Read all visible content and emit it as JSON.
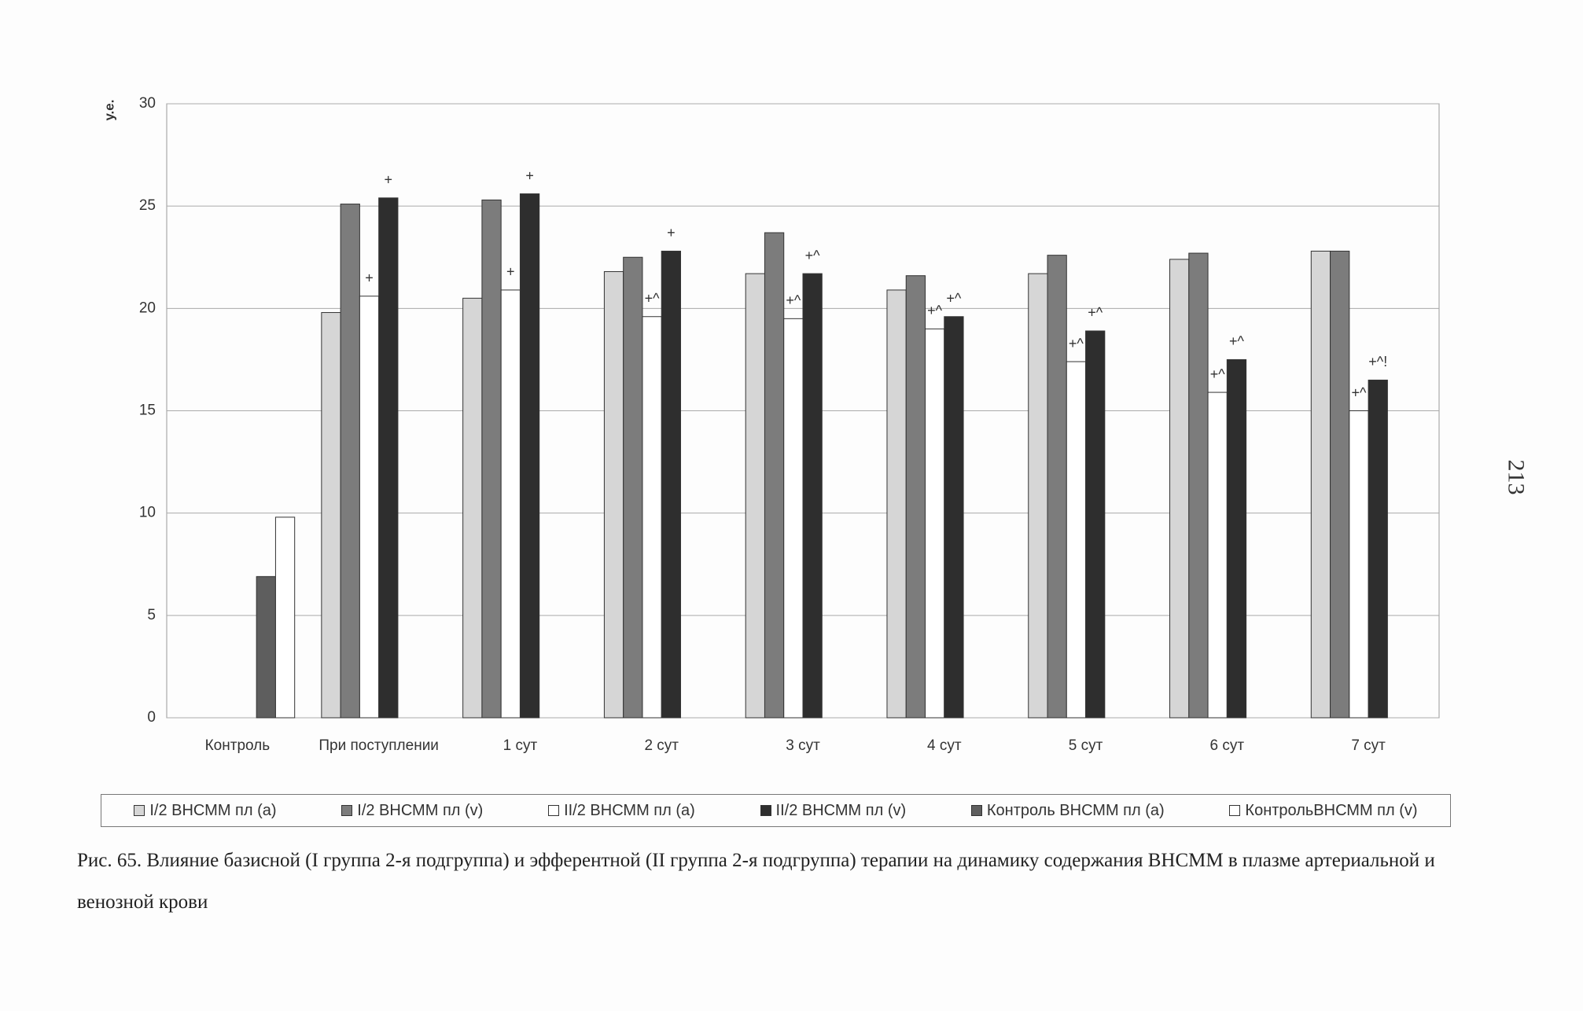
{
  "chart_data": {
    "type": "bar",
    "y_label": "у.е.",
    "categories": [
      "Контроль",
      "При поступлении",
      "1 сут",
      "2 сут",
      "3 сут",
      "4 сут",
      "5 сут",
      "6 сут",
      "7 сут"
    ],
    "series": [
      {
        "name": "I/2 ВНСММ пл (а)",
        "color": "#d6d6d6",
        "values": [
          null,
          19.8,
          20.5,
          21.8,
          21.7,
          20.9,
          21.7,
          22.4,
          22.8
        ]
      },
      {
        "name": "I/2 ВНСММ пл (v)",
        "color": "#7c7c7c",
        "values": [
          null,
          25.1,
          25.3,
          22.5,
          23.7,
          21.6,
          22.6,
          22.7,
          22.8
        ]
      },
      {
        "name": "II/2 ВНСММ пл (a)",
        "color": "#ffffff",
        "values": [
          null,
          20.6,
          20.9,
          19.6,
          19.5,
          19.0,
          17.4,
          15.9,
          15.0
        ],
        "annotations": [
          null,
          "+",
          "+",
          "+^",
          "+^",
          "+^",
          "+^",
          "+^",
          "+^"
        ]
      },
      {
        "name": "II/2 ВНСММ пл (v)",
        "color": "#2e2e2e",
        "values": [
          null,
          25.4,
          25.6,
          22.8,
          21.7,
          19.6,
          18.9,
          17.5,
          16.5
        ],
        "annotations": [
          null,
          "+",
          "+",
          "+",
          "+^",
          "+^",
          "+^",
          "+^",
          "+^!"
        ]
      },
      {
        "name": "Контроль ВНСММ пл (а)",
        "color": "#5e5e5e",
        "values": [
          6.9,
          null,
          null,
          null,
          null,
          null,
          null,
          null,
          null
        ]
      },
      {
        "name": "КонтрольВНСММ пл (v)",
        "color": "#ffffff",
        "values": [
          9.8,
          null,
          null,
          null,
          null,
          null,
          null,
          null,
          null
        ]
      }
    ],
    "ylim": [
      0,
      30
    ],
    "yticks": [
      0,
      5,
      10,
      15,
      20,
      25,
      30
    ],
    "grid": true
  },
  "caption": "Рис. 65. Влияние базисной (I группа 2-я подгруппа) и эфферентной (II группа 2-я подгруппа) терапии на динамику содержания ВНСММ в плазме артериальной и венозной крови",
  "page_number": "213"
}
